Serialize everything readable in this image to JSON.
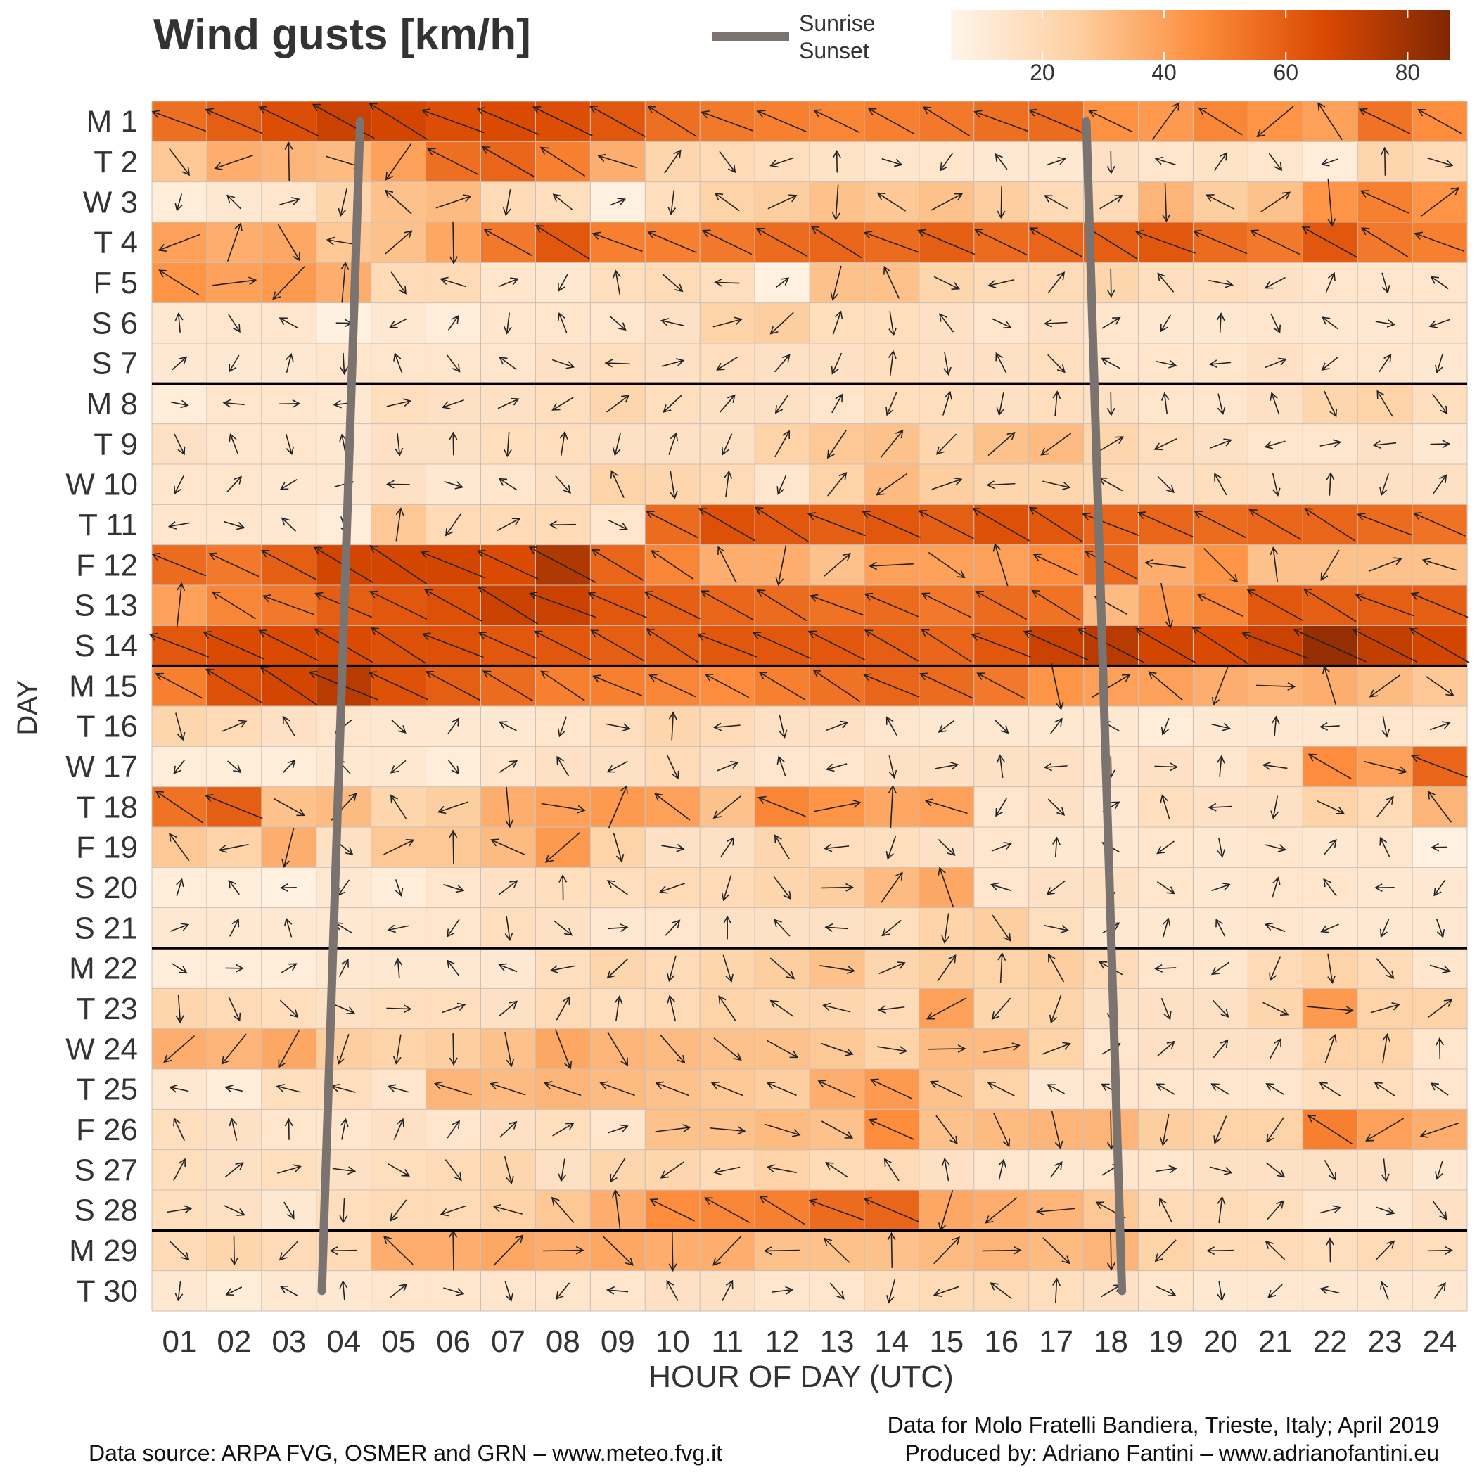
{
  "chart_data": {
    "type": "heatmap",
    "title": "Wind gusts [km/h]",
    "xlabel": "HOUR OF DAY (UTC)",
    "ylabel": "DAY",
    "x": [
      "01",
      "02",
      "03",
      "04",
      "05",
      "06",
      "07",
      "08",
      "09",
      "10",
      "11",
      "12",
      "13",
      "14",
      "15",
      "16",
      "17",
      "18",
      "19",
      "20",
      "21",
      "22",
      "23",
      "24"
    ],
    "y": [
      "M 1",
      "T 2",
      "W 3",
      "T 4",
      "F 5",
      "S 6",
      "S 7",
      "M 8",
      "T 9",
      "W 10",
      "T 11",
      "F 12",
      "S 13",
      "S 14",
      "M 15",
      "T 16",
      "W 17",
      "T 18",
      "F 19",
      "S 20",
      "S 21",
      "M 22",
      "T 23",
      "W 24",
      "T 25",
      "F 26",
      "S 27",
      "S 28",
      "M 29",
      "T 30"
    ],
    "week_separators_after": [
      "S 7",
      "S 14",
      "S 21",
      "S 28"
    ],
    "colorbar": {
      "ticks": [
        20,
        40,
        60,
        80
      ],
      "range": [
        5,
        87
      ],
      "colors": [
        "#fff5eb",
        "#fdd0a2",
        "#fd8d3c",
        "#d94801",
        "#7f2704"
      ]
    },
    "legend": {
      "line_label_1": "Sunrise",
      "line_label_2": "Sunset",
      "line_color": "#7a7370"
    },
    "sunrise": [
      4.3,
      3.6
    ],
    "sunset": [
      17.55,
      18.2
    ],
    "gusts": [
      [
        55,
        60,
        65,
        70,
        68,
        65,
        66,
        65,
        62,
        55,
        52,
        50,
        48,
        50,
        52,
        55,
        56,
        45,
        42,
        48,
        44,
        40,
        54,
        46
      ],
      [
        28,
        36,
        34,
        32,
        40,
        55,
        58,
        50,
        36,
        22,
        20,
        18,
        15,
        14,
        14,
        12,
        12,
        16,
        14,
        15,
        14,
        10,
        22,
        20
      ],
      [
        10,
        12,
        14,
        22,
        30,
        32,
        20,
        18,
        8,
        18,
        24,
        26,
        30,
        28,
        30,
        26,
        20,
        20,
        34,
        26,
        30,
        44,
        50,
        44
      ],
      [
        40,
        36,
        38,
        28,
        30,
        38,
        52,
        62,
        50,
        50,
        52,
        56,
        58,
        56,
        60,
        56,
        58,
        60,
        62,
        56,
        52,
        62,
        52,
        50
      ],
      [
        44,
        40,
        42,
        36,
        20,
        20,
        14,
        12,
        18,
        20,
        18,
        8,
        30,
        30,
        22,
        20,
        20,
        22,
        18,
        18,
        16,
        14,
        14,
        14
      ],
      [
        12,
        14,
        14,
        8,
        12,
        10,
        14,
        14,
        14,
        16,
        24,
        26,
        18,
        18,
        16,
        14,
        16,
        14,
        12,
        12,
        14,
        12,
        12,
        14
      ],
      [
        12,
        12,
        12,
        14,
        14,
        14,
        14,
        16,
        18,
        16,
        18,
        16,
        16,
        18,
        16,
        16,
        18,
        14,
        14,
        14,
        16,
        14,
        14,
        12
      ],
      [
        10,
        14,
        14,
        12,
        18,
        16,
        16,
        18,
        22,
        18,
        16,
        16,
        14,
        18,
        18,
        16,
        18,
        16,
        14,
        14,
        16,
        22,
        24,
        18
      ],
      [
        16,
        14,
        14,
        12,
        16,
        16,
        18,
        18,
        16,
        16,
        16,
        24,
        28,
        30,
        22,
        30,
        32,
        22,
        18,
        16,
        14,
        14,
        16,
        12
      ],
      [
        14,
        14,
        12,
        12,
        16,
        12,
        14,
        16,
        24,
        22,
        20,
        14,
        24,
        32,
        26,
        22,
        22,
        20,
        16,
        18,
        16,
        16,
        16,
        16
      ],
      [
        14,
        14,
        12,
        10,
        28,
        20,
        20,
        20,
        14,
        56,
        64,
        62,
        60,
        62,
        60,
        64,
        62,
        58,
        58,
        56,
        58,
        58,
        56,
        54
      ],
      [
        56,
        52,
        60,
        68,
        68,
        68,
        66,
        76,
        58,
        48,
        36,
        36,
        30,
        40,
        40,
        40,
        46,
        56,
        36,
        44,
        30,
        30,
        30,
        30
      ],
      [
        40,
        48,
        52,
        60,
        62,
        64,
        70,
        70,
        62,
        60,
        58,
        56,
        54,
        56,
        52,
        56,
        54,
        32,
        42,
        48,
        62,
        60,
        60,
        60
      ],
      [
        62,
        66,
        66,
        66,
        64,
        64,
        62,
        62,
        60,
        60,
        62,
        62,
        62,
        60,
        58,
        62,
        70,
        74,
        68,
        66,
        70,
        82,
        72,
        68
      ],
      [
        50,
        64,
        68,
        74,
        64,
        60,
        56,
        50,
        50,
        48,
        46,
        50,
        54,
        58,
        56,
        52,
        44,
        40,
        40,
        36,
        34,
        36,
        32,
        28
      ],
      [
        22,
        20,
        16,
        14,
        12,
        12,
        12,
        14,
        18,
        22,
        20,
        16,
        16,
        14,
        12,
        12,
        12,
        12,
        10,
        12,
        12,
        12,
        14,
        14
      ],
      [
        10,
        10,
        10,
        12,
        12,
        10,
        14,
        16,
        16,
        20,
        16,
        14,
        14,
        16,
        16,
        16,
        16,
        14,
        16,
        14,
        18,
        46,
        40,
        58
      ],
      [
        54,
        60,
        30,
        32,
        22,
        26,
        36,
        40,
        42,
        40,
        30,
        48,
        44,
        38,
        40,
        14,
        16,
        12,
        18,
        16,
        16,
        24,
        20,
        34
      ],
      [
        28,
        24,
        36,
        16,
        28,
        28,
        32,
        42,
        24,
        16,
        16,
        22,
        18,
        18,
        16,
        14,
        12,
        12,
        14,
        12,
        14,
        12,
        14,
        8
      ],
      [
        10,
        10,
        8,
        12,
        10,
        14,
        16,
        18,
        18,
        20,
        20,
        22,
        26,
        32,
        38,
        14,
        16,
        16,
        14,
        12,
        14,
        14,
        12,
        12
      ],
      [
        12,
        12,
        12,
        12,
        14,
        14,
        18,
        16,
        12,
        14,
        16,
        16,
        16,
        18,
        24,
        26,
        18,
        12,
        12,
        12,
        14,
        12,
        12,
        12
      ],
      [
        10,
        10,
        10,
        12,
        12,
        12,
        12,
        18,
        22,
        20,
        22,
        26,
        30,
        22,
        26,
        24,
        26,
        20,
        14,
        14,
        20,
        24,
        20,
        14
      ],
      [
        22,
        20,
        18,
        16,
        18,
        18,
        16,
        20,
        18,
        20,
        24,
        22,
        22,
        20,
        40,
        22,
        24,
        16,
        16,
        16,
        22,
        42,
        24,
        24
      ],
      [
        36,
        34,
        38,
        26,
        24,
        26,
        30,
        38,
        34,
        32,
        30,
        30,
        28,
        24,
        32,
        32,
        24,
        14,
        16,
        16,
        16,
        24,
        24,
        14
      ],
      [
        12,
        10,
        18,
        18,
        14,
        34,
        32,
        34,
        32,
        30,
        28,
        26,
        36,
        42,
        30,
        24,
        12,
        14,
        14,
        14,
        14,
        18,
        18,
        14
      ],
      [
        18,
        16,
        14,
        14,
        16,
        14,
        16,
        18,
        14,
        30,
        30,
        32,
        30,
        46,
        30,
        32,
        34,
        34,
        26,
        24,
        24,
        50,
        40,
        36
      ],
      [
        18,
        16,
        18,
        16,
        18,
        20,
        22,
        16,
        22,
        22,
        20,
        24,
        20,
        20,
        16,
        14,
        12,
        14,
        14,
        16,
        16,
        16,
        16,
        12
      ],
      [
        18,
        16,
        12,
        18,
        20,
        20,
        24,
        28,
        36,
        46,
        48,
        50,
        56,
        58,
        38,
        36,
        34,
        28,
        20,
        20,
        18,
        14,
        12,
        16
      ],
      [
        20,
        22,
        20,
        20,
        36,
        36,
        38,
        36,
        38,
        36,
        36,
        30,
        30,
        30,
        32,
        34,
        32,
        34,
        24,
        20,
        20,
        18,
        20,
        18
      ],
      [
        12,
        10,
        12,
        12,
        14,
        14,
        14,
        14,
        14,
        16,
        16,
        14,
        14,
        18,
        20,
        20,
        18,
        16,
        14,
        12,
        12,
        12,
        12,
        12
      ]
    ]
  },
  "footer": {
    "source": "Data source: ARPA FVG, OSMER and GRN – www.meteo.fvg.it",
    "location": "Data for Molo Fratelli Bandiera, Trieste, Italy; April 2019",
    "author": "Produced by: Adriano Fantini  – www.adrianofantini.eu"
  }
}
